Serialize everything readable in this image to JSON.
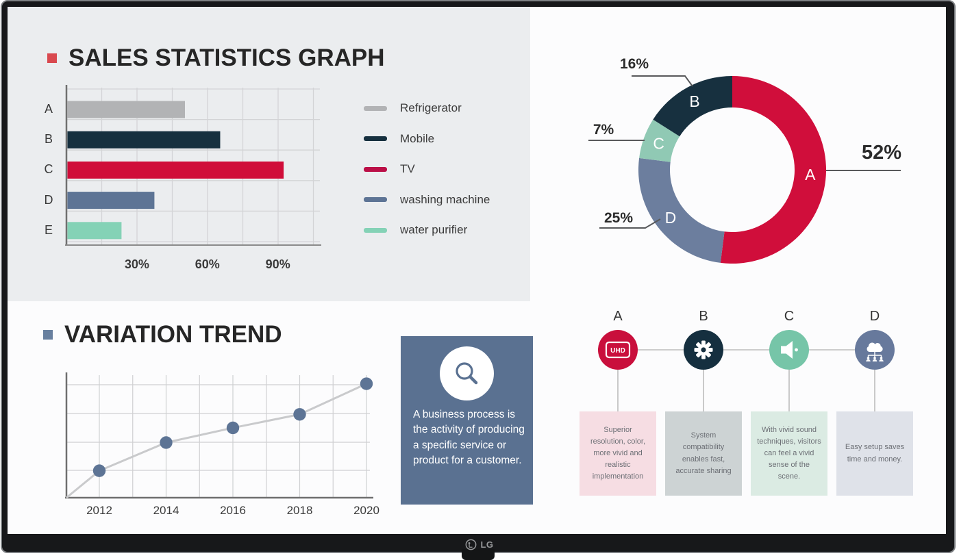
{
  "brand": {
    "logo_text": "LG"
  },
  "accents": {
    "sales_bullet": "#d9494f",
    "trend_bullet": "#68809f"
  },
  "sections": {
    "sales": {
      "title": "SALES STATISTICS GRAPH"
    },
    "trend": {
      "title": "VARIATION TREND"
    },
    "info_card": {
      "icon": "magnifier-icon",
      "text": "A business process is the activity of producing a specific service or product for a customer."
    },
    "features": {
      "items": [
        {
          "letter": "A",
          "icon": "uhd-icon",
          "icon_text": "UHD",
          "circle_color": "#c90f3c",
          "box_color": "#f6dde3",
          "text": "Superior resolution, color, more vivid and realistic implementation"
        },
        {
          "letter": "B",
          "icon": "gear-icon",
          "circle_color": "#152f3f",
          "box_color": "#cdd3d4",
          "text": "System compatibility enables fast, accurate sharing"
        },
        {
          "letter": "C",
          "icon": "speaker-icon",
          "circle_color": "#76c5a8",
          "box_color": "#dbebe3",
          "text": "With vivid sound techniques, visitors can feel a vivid sense of the scene."
        },
        {
          "letter": "D",
          "icon": "cloud-network-icon",
          "circle_color": "#67799c",
          "box_color": "#dfe2e9",
          "text": "Easy setup saves time and money."
        }
      ]
    }
  },
  "chart_data": [
    {
      "id": "sales_bar_chart",
      "type": "bar",
      "orientation": "horizontal",
      "title": "SALES STATISTICS GRAPH",
      "categories": [
        "A",
        "B",
        "C",
        "D",
        "E"
      ],
      "values": [
        50,
        65,
        92,
        37,
        23
      ],
      "value_unit": "percent",
      "xlim": [
        0,
        105
      ],
      "grid": true,
      "xticks": [
        {
          "value": 30,
          "label": "30%"
        },
        {
          "value": 60,
          "label": "60%"
        },
        {
          "value": 90,
          "label": "90%"
        }
      ],
      "bar_colors": [
        "#b2b3b5",
        "#16303f",
        "#d00d39",
        "#5d7495",
        "#84d2b6"
      ],
      "legend_position": "right",
      "legend": [
        {
          "label": "Refrigerator",
          "color": "#b2b3b5"
        },
        {
          "label": "Mobile",
          "color": "#16303f"
        },
        {
          "label": "TV",
          "color": "#bb0f47"
        },
        {
          "label": "washing machine",
          "color": "#5d7495"
        },
        {
          "label": "water purifier",
          "color": "#84d2b6"
        }
      ]
    },
    {
      "id": "share_donut_chart",
      "type": "pie",
      "style": "donut",
      "slices": [
        {
          "label": "A",
          "value": 52,
          "color": "#d00e3b",
          "callout": "52%"
        },
        {
          "label": "B",
          "value": 16,
          "color": "#17303f",
          "callout": "16%"
        },
        {
          "label": "C",
          "value": 7,
          "color": "#90c9b4",
          "callout": "7%"
        },
        {
          "label": "D",
          "value": 25,
          "color": "#6c7e9e",
          "callout": "25%"
        }
      ],
      "draw_order_clockwise_from_top": [
        "A",
        "D",
        "C",
        "B"
      ]
    },
    {
      "id": "variation_trend_chart",
      "type": "line",
      "title": "VARIATION TREND",
      "x": [
        2012,
        2014,
        2016,
        2018,
        2020
      ],
      "y": [
        22,
        45,
        57,
        68,
        93
      ],
      "ylim": [
        0,
        100
      ],
      "grid": true,
      "starts_at_origin": true,
      "line_color": "#c9cacc",
      "point_color": "#5d7495"
    }
  ]
}
